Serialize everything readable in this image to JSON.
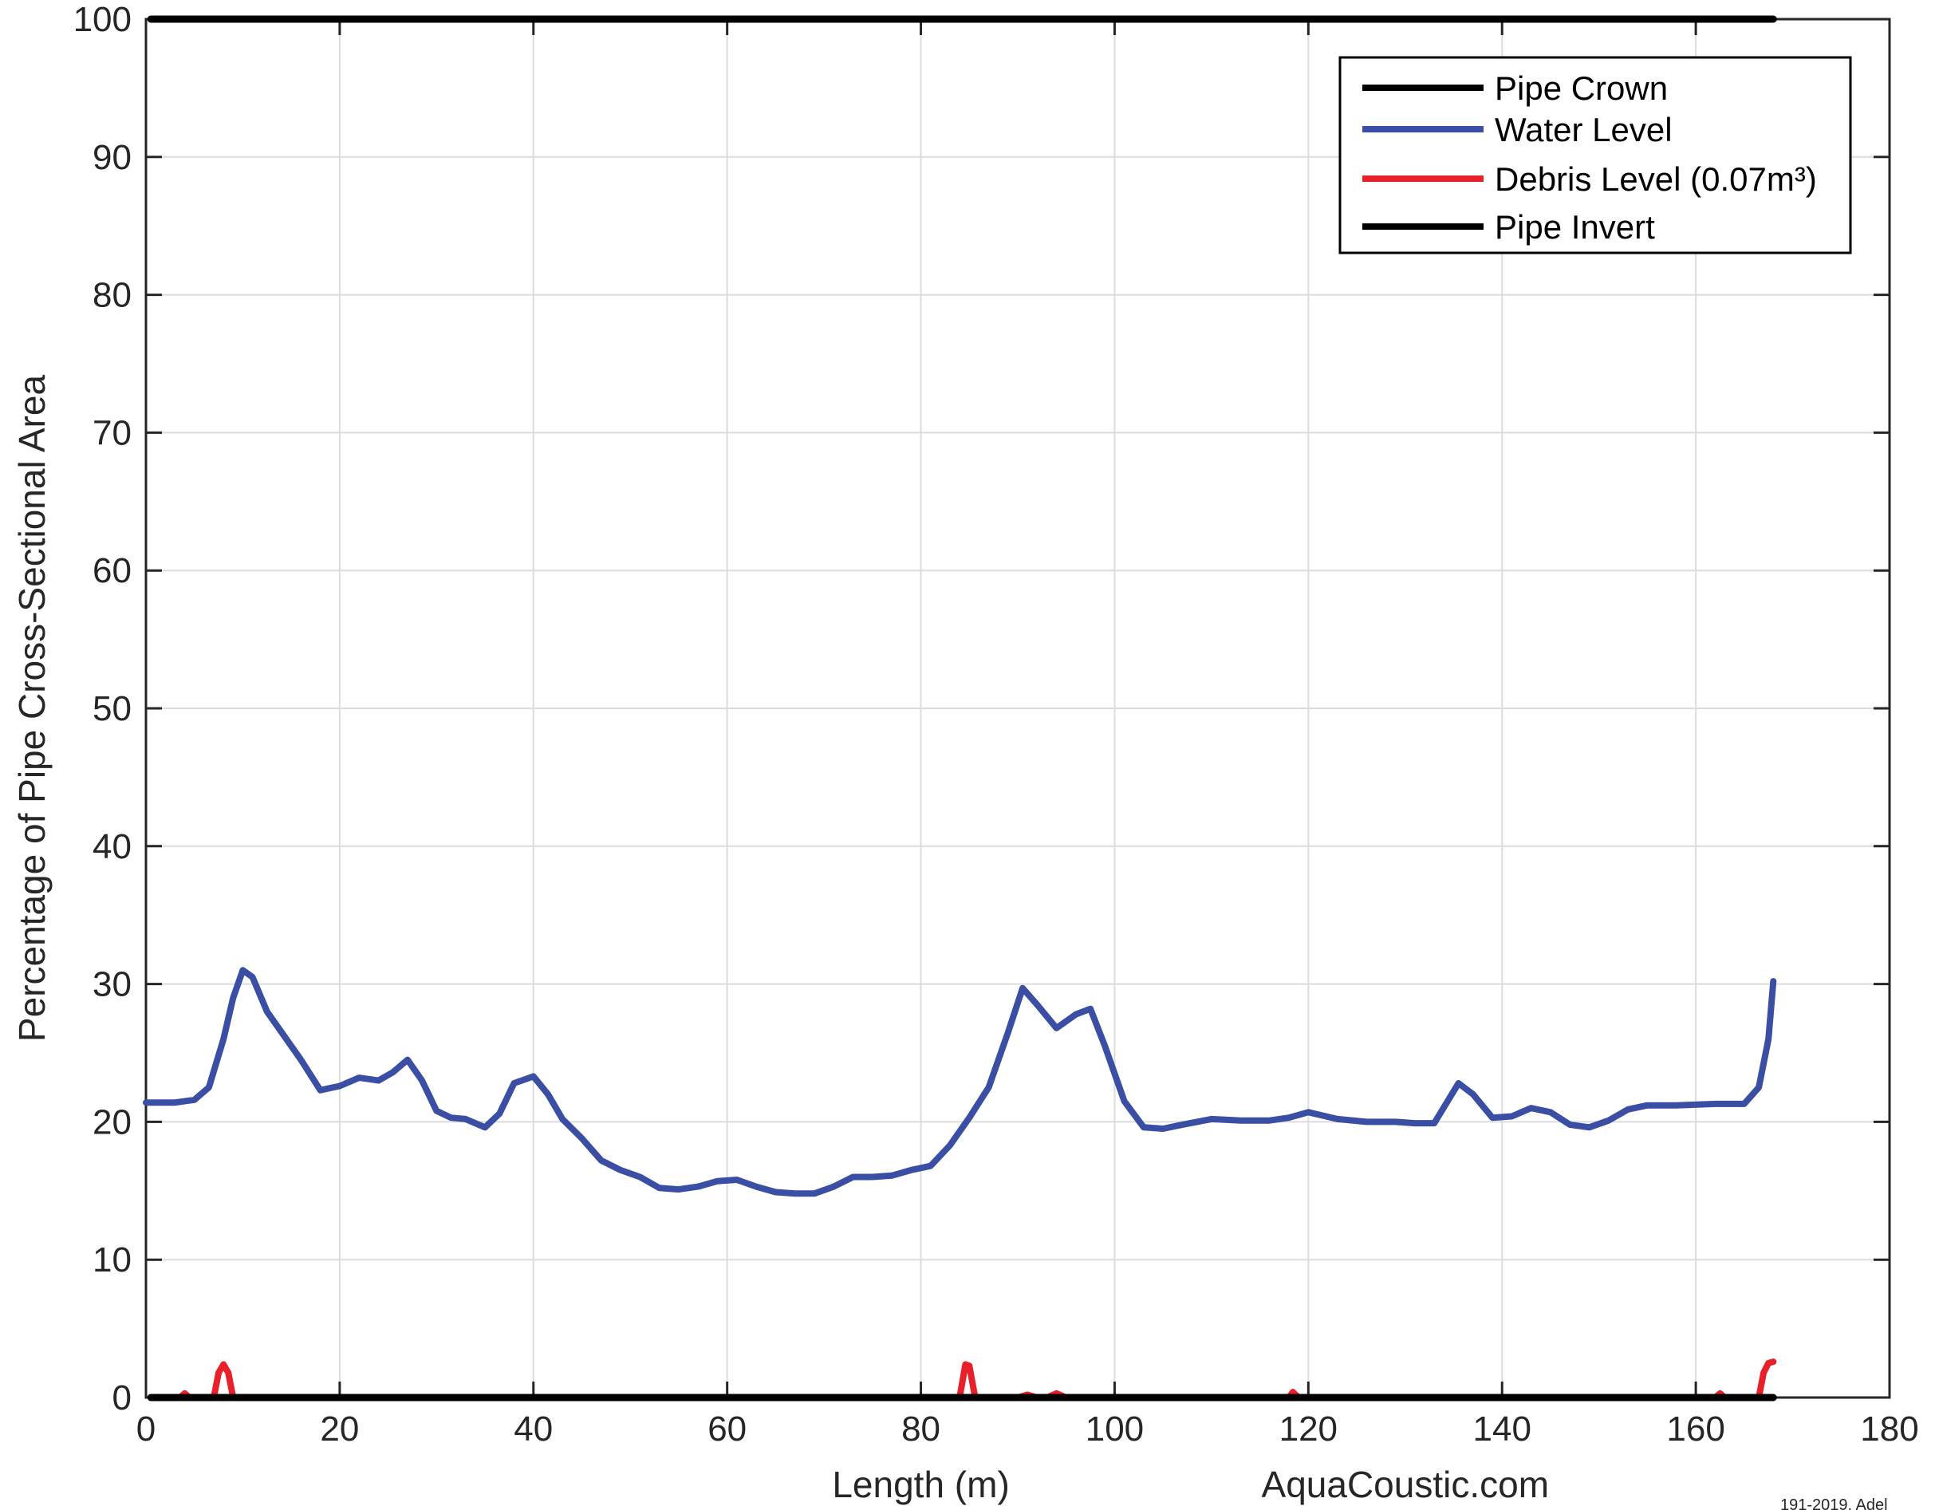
{
  "chart_data": {
    "type": "line",
    "title": "",
    "xlabel": "Length (m)",
    "ylabel": "Percentage of Pipe Cross-Sectional Area",
    "xlim": [
      0,
      180
    ],
    "ylim": [
      0,
      100
    ],
    "xticks": [
      0,
      20,
      40,
      60,
      80,
      100,
      120,
      140,
      160,
      180
    ],
    "yticks": [
      0,
      10,
      20,
      30,
      40,
      50,
      60,
      70,
      80,
      90,
      100
    ],
    "grid": true,
    "legend_position": "top-right",
    "series": [
      {
        "name": "Pipe Crown",
        "color": "#000000",
        "x": [
          0.5,
          168
        ],
        "y": [
          100,
          100
        ]
      },
      {
        "name": "Water Level",
        "color": "#3a4fa3",
        "x": [
          0,
          3,
          5,
          6.5,
          8,
          9,
          10,
          11,
          12.5,
          14,
          16,
          18,
          20,
          22,
          24,
          25.5,
          27,
          28.5,
          30,
          31.5,
          33,
          35,
          36.5,
          38,
          40,
          41.5,
          43,
          45,
          47,
          49,
          51,
          53,
          55,
          57,
          59,
          61,
          63,
          65,
          67,
          69,
          71,
          73,
          75,
          77,
          79,
          81,
          83,
          85,
          87,
          89,
          90.5,
          92,
          94,
          96,
          97.5,
          99,
          101,
          103,
          105,
          107,
          110,
          113,
          116,
          118,
          120,
          123,
          126,
          129,
          131,
          133,
          135.5,
          137,
          139,
          141,
          143,
          145,
          147,
          149,
          151,
          153,
          155,
          158,
          162,
          165,
          166.5,
          167.5,
          168
        ],
        "y": [
          21.4,
          21.4,
          21.6,
          22.5,
          26.0,
          29.0,
          31.0,
          30.5,
          28.0,
          26.5,
          24.5,
          22.3,
          22.6,
          23.2,
          23.0,
          23.6,
          24.5,
          23.0,
          20.8,
          20.3,
          20.2,
          19.6,
          20.6,
          22.8,
          23.3,
          22.0,
          20.2,
          18.8,
          17.2,
          16.5,
          16.0,
          15.2,
          15.1,
          15.3,
          15.7,
          15.8,
          15.3,
          14.9,
          14.8,
          14.8,
          15.3,
          16.0,
          16.0,
          16.1,
          16.5,
          16.8,
          18.3,
          20.3,
          22.5,
          26.5,
          29.7,
          28.5,
          26.8,
          27.8,
          28.2,
          25.5,
          21.5,
          19.6,
          19.5,
          19.8,
          20.2,
          20.1,
          20.1,
          20.3,
          20.7,
          20.2,
          20.0,
          20.0,
          19.9,
          19.9,
          22.8,
          22.0,
          20.3,
          20.4,
          21.0,
          20.7,
          19.8,
          19.6,
          20.1,
          20.9,
          21.2,
          21.2,
          21.3,
          21.3,
          22.5,
          26.0,
          30.2
        ]
      },
      {
        "name": "Debris Level (0.07m³)",
        "color": "#e8202a",
        "x": [
          0.5,
          3.5,
          4,
          4.5,
          7,
          7.5,
          8,
          8.5,
          9,
          84,
          84.6,
          85,
          85.6,
          86,
          90,
          91,
          92,
          93,
          94,
          95,
          118,
          118.4,
          119,
          162,
          162.5,
          163,
          166.5,
          167,
          167.5,
          168
        ],
        "y": [
          0,
          0,
          0.3,
          0,
          0,
          1.8,
          2.4,
          1.8,
          0,
          0,
          2.4,
          2.3,
          0,
          0,
          0,
          0.2,
          0,
          0,
          0.3,
          0,
          0,
          0.4,
          0,
          0,
          0.3,
          0,
          0,
          1.8,
          2.5,
          2.6
        ]
      },
      {
        "name": "Pipe Invert",
        "color": "#000000",
        "x": [
          0.5,
          168
        ],
        "y": [
          0,
          0
        ]
      }
    ],
    "legend": {
      "entries": [
        "Pipe Crown",
        "Water Level",
        "Debris Level (0.07m³)",
        "Pipe Invert"
      ]
    },
    "footer_text": "AquaCoustic.com",
    "corner_text": "191-2019, Adel"
  }
}
